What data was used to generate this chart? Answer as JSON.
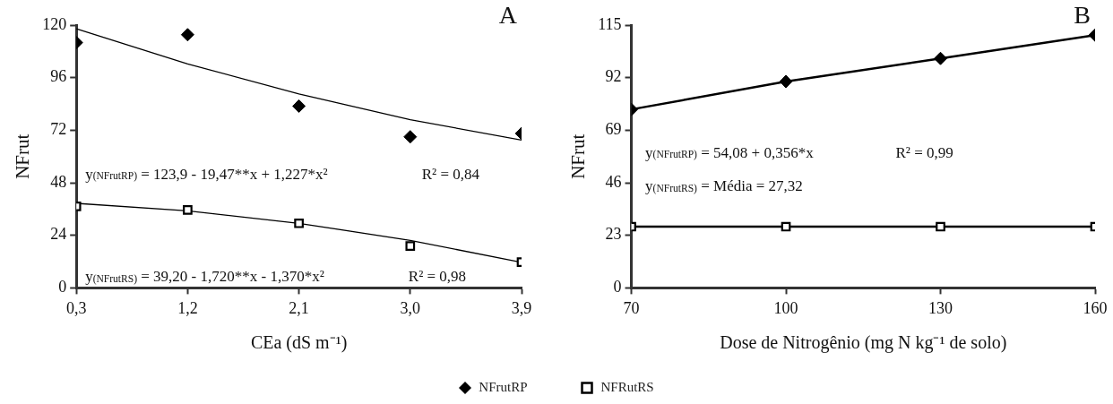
{
  "chart_data": [
    {
      "type": "scatter",
      "title": "A",
      "xlabel": "CEa (dS m⁻¹)",
      "ylabel": "NFrut",
      "xlim": [
        0.3,
        3.9
      ],
      "xticks": [
        {
          "value": 0.3,
          "label": "0,3"
        },
        {
          "value": 1.2,
          "label": "1,2"
        },
        {
          "value": 2.1,
          "label": "2,1"
        },
        {
          "value": 3.0,
          "label": "3,0"
        },
        {
          "value": 3.9,
          "label": "3,9"
        }
      ],
      "ylim": [
        0,
        120
      ],
      "yticks": [
        0,
        24,
        48,
        72,
        96,
        120
      ],
      "legend": "bottom",
      "annotations": [
        "y$_{(NFrutRP)}$ = 123,9 - 19,47**x + 1,227*x²",
        "R² = 0,84",
        "y$_{(NFrutRS)}$ = 39,20 - 1,720**x - 1,370*x²",
        "R² = 0,98"
      ],
      "series": [
        {
          "name": "NFrutRP",
          "marker": "diamond",
          "color": "#000000",
          "x": [
            0.3,
            1.2,
            2.1,
            3.0,
            3.9
          ],
          "values": [
            112,
            115.6,
            83,
            69,
            70.5
          ]
        },
        {
          "name": "NFRutRS",
          "marker": "square",
          "color": "#000000",
          "x": [
            0.3,
            1.2,
            2.1,
            3.0,
            3.9
          ],
          "values": [
            37.2,
            35.6,
            29.5,
            19.1,
            11.8
          ]
        },
        {
          "type": "line",
          "marker": "none",
          "color": "#000000",
          "x": [
            0.3,
            1.2,
            2.1,
            3.0,
            3.9
          ],
          "values": [
            118.3,
            102.3,
            88.6,
            76.8,
            67.5
          ]
        },
        {
          "type": "line",
          "marker": "none",
          "color": "#000000",
          "x": [
            0.3,
            1.2,
            2.1,
            3.0,
            3.9
          ],
          "values": [
            38.6,
            35.2,
            29.5,
            21.7,
            11.7
          ]
        }
      ]
    },
    {
      "type": "line",
      "title": "B",
      "xlabel": "Dose de Nitrogênio (mg N kg⁻¹ de solo)",
      "ylabel": "NFrut",
      "xlim": [
        70,
        160
      ],
      "xticks": [
        70,
        100,
        130,
        160
      ],
      "ylim": [
        0,
        115
      ],
      "yticks": [
        0,
        23,
        46,
        69,
        92,
        115
      ],
      "annotations": [
        "y$_{(NFrutRP)}$ = 54,08 + 0,356*x",
        "R² = 0,99",
        "y$_{(NFrutRS)}$ = Média = 27,32"
      ],
      "series": [
        {
          "marker": "diamond",
          "color": "#000000",
          "x": [
            70,
            100,
            130,
            160
          ],
          "values": [
            78.1,
            90.3,
            100.4,
            110.6
          ]
        },
        {
          "marker": "square",
          "color": "#000000",
          "x": [
            70,
            100,
            130,
            160
          ],
          "values": [
            26.8,
            26.8,
            26.8,
            26.8
          ]
        }
      ]
    }
  ]
}
